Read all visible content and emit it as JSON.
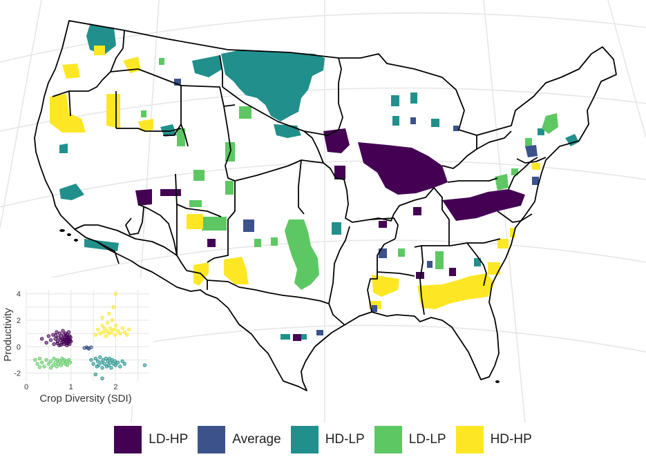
{
  "colors": {
    "ld_hp": "#440154",
    "average": "#3b528b",
    "hd_lp": "#21908c",
    "ld_lp": "#5dc863",
    "hd_hp": "#fde725",
    "state_border": "#000000",
    "graticule": "#e6e6e6",
    "inset_grid": "#e4e4e4"
  },
  "legend": {
    "placement": "bottom",
    "items": [
      {
        "label": "LD-HP",
        "color_key": "ld_hp"
      },
      {
        "label": "Average",
        "color_key": "average"
      },
      {
        "label": "HD-LP",
        "color_key": "hd_lp"
      },
      {
        "label": "LD-LP",
        "color_key": "ld_lp"
      },
      {
        "label": "HD-HP",
        "color_key": "hd_hp"
      }
    ]
  },
  "chart_data": {
    "type": "scatter",
    "title": "",
    "xlabel": "Crop Diversity (SDI)",
    "ylabel": "Productivity",
    "xticks": [
      "0",
      "1",
      "2"
    ],
    "yticks": [
      "-2",
      "0",
      "2",
      "4"
    ],
    "xlim": [
      0,
      2.75
    ],
    "ylim": [
      -2.6,
      4.3
    ],
    "grid": true,
    "series": [
      {
        "name": "LD-HP",
        "color_key": "ld_hp",
        "points": [
          [
            0.35,
            0.6
          ],
          [
            0.45,
            0.3
          ],
          [
            0.5,
            0.8
          ],
          [
            0.55,
            0.5
          ],
          [
            0.6,
            0.9
          ],
          [
            0.62,
            0.2
          ],
          [
            0.65,
            0.6
          ],
          [
            0.68,
            1.1
          ],
          [
            0.7,
            0.4
          ],
          [
            0.72,
            0.7
          ],
          [
            0.74,
            0.1
          ],
          [
            0.75,
            1.0
          ],
          [
            0.77,
            0.5
          ],
          [
            0.78,
            0.8
          ],
          [
            0.8,
            0.3
          ],
          [
            0.8,
            0.6
          ],
          [
            0.82,
            1.2
          ],
          [
            0.83,
            0.4
          ],
          [
            0.84,
            0.9
          ],
          [
            0.85,
            0.2
          ],
          [
            0.86,
            0.7
          ],
          [
            0.87,
            0.5
          ],
          [
            0.88,
            1.0
          ],
          [
            0.88,
            0.3
          ],
          [
            0.89,
            0.8
          ],
          [
            0.9,
            0.6
          ],
          [
            0.9,
            0.4
          ],
          [
            0.91,
            0.1
          ],
          [
            0.92,
            0.9
          ],
          [
            0.93,
            0.5
          ],
          [
            0.93,
            0.7
          ],
          [
            0.94,
            0.3
          ],
          [
            0.95,
            0.6
          ],
          [
            0.95,
            1.1
          ],
          [
            0.96,
            0.4
          ],
          [
            0.97,
            0.8
          ],
          [
            0.97,
            0.2
          ],
          [
            0.98,
            0.5
          ],
          [
            0.99,
            0.7
          ],
          [
            1.0,
            0.4
          ],
          [
            0.78,
            0.15
          ],
          [
            0.84,
            0.55
          ],
          [
            0.7,
            0.25
          ],
          [
            0.92,
            0.25
          ],
          [
            0.66,
            0.85
          ]
        ]
      },
      {
        "name": "Average",
        "color_key": "average",
        "points": [
          [
            1.3,
            -0.1
          ],
          [
            1.35,
            -0.05
          ],
          [
            1.4,
            -0.15
          ],
          [
            1.45,
            -0.05
          ],
          [
            1.38,
            -0.1
          ]
        ]
      },
      {
        "name": "HD-LP",
        "color_key": "hd_lp",
        "points": [
          [
            1.45,
            -1.0
          ],
          [
            1.5,
            -1.3
          ],
          [
            1.55,
            -0.9
          ],
          [
            1.58,
            -1.5
          ],
          [
            1.6,
            -1.1
          ],
          [
            1.62,
            -1.4
          ],
          [
            1.65,
            -0.8
          ],
          [
            1.68,
            -1.2
          ],
          [
            1.7,
            -1.6
          ],
          [
            1.72,
            -1.0
          ],
          [
            1.75,
            -1.3
          ],
          [
            1.78,
            -0.9
          ],
          [
            1.8,
            -1.5
          ],
          [
            1.82,
            -1.1
          ],
          [
            1.84,
            -1.4
          ],
          [
            1.86,
            -0.9
          ],
          [
            1.88,
            -1.2
          ],
          [
            1.9,
            -1.6
          ],
          [
            1.92,
            -1.0
          ],
          [
            1.95,
            -1.3
          ],
          [
            1.98,
            -1.1
          ],
          [
            2.0,
            -1.4
          ],
          [
            2.05,
            -1.2
          ],
          [
            2.1,
            -1.5
          ],
          [
            2.15,
            -1.1
          ],
          [
            2.2,
            -1.3
          ],
          [
            1.55,
            -2.1
          ],
          [
            1.7,
            -2.4
          ],
          [
            2.65,
            -1.4
          ]
        ]
      },
      {
        "name": "LD-LP",
        "color_key": "ld_lp",
        "points": [
          [
            0.2,
            -1.0
          ],
          [
            0.25,
            -1.3
          ],
          [
            0.3,
            -0.9
          ],
          [
            0.35,
            -1.2
          ],
          [
            0.4,
            -1.5
          ],
          [
            0.45,
            -1.0
          ],
          [
            0.5,
            -1.3
          ],
          [
            0.55,
            -1.1
          ],
          [
            0.6,
            -1.4
          ],
          [
            0.62,
            -0.9
          ],
          [
            0.65,
            -1.2
          ],
          [
            0.68,
            -1.5
          ],
          [
            0.7,
            -1.0
          ],
          [
            0.72,
            -1.3
          ],
          [
            0.75,
            -1.1
          ],
          [
            0.78,
            -1.4
          ],
          [
            0.8,
            -0.9
          ],
          [
            0.82,
            -1.2
          ],
          [
            0.85,
            -1.0
          ],
          [
            0.88,
            -1.3
          ],
          [
            0.9,
            -1.1
          ],
          [
            0.92,
            -1.4
          ],
          [
            0.95,
            -1.0
          ],
          [
            0.98,
            -1.2
          ],
          [
            0.3,
            -1.55
          ],
          [
            0.55,
            -1.6
          ]
        ]
      },
      {
        "name": "HD-HP",
        "color_key": "hd_hp",
        "points": [
          [
            1.55,
            0.9
          ],
          [
            1.6,
            1.3
          ],
          [
            1.65,
            1.0
          ],
          [
            1.7,
            1.6
          ],
          [
            1.72,
            1.1
          ],
          [
            1.75,
            1.4
          ],
          [
            1.78,
            0.8
          ],
          [
            1.8,
            1.2
          ],
          [
            1.82,
            1.8
          ],
          [
            1.85,
            1.0
          ],
          [
            1.88,
            1.4
          ],
          [
            1.9,
            1.1
          ],
          [
            1.92,
            2.0
          ],
          [
            1.95,
            1.3
          ],
          [
            1.98,
            0.9
          ],
          [
            2.0,
            1.6
          ],
          [
            2.05,
            1.2
          ],
          [
            2.1,
            1.0
          ],
          [
            2.15,
            1.4
          ],
          [
            2.2,
            1.1
          ],
          [
            2.25,
            0.9
          ],
          [
            1.85,
            2.5
          ],
          [
            1.95,
            3.0
          ],
          [
            2.0,
            4.0
          ],
          [
            1.7,
            2.2
          ],
          [
            2.3,
            1.3
          ]
        ]
      }
    ]
  }
}
